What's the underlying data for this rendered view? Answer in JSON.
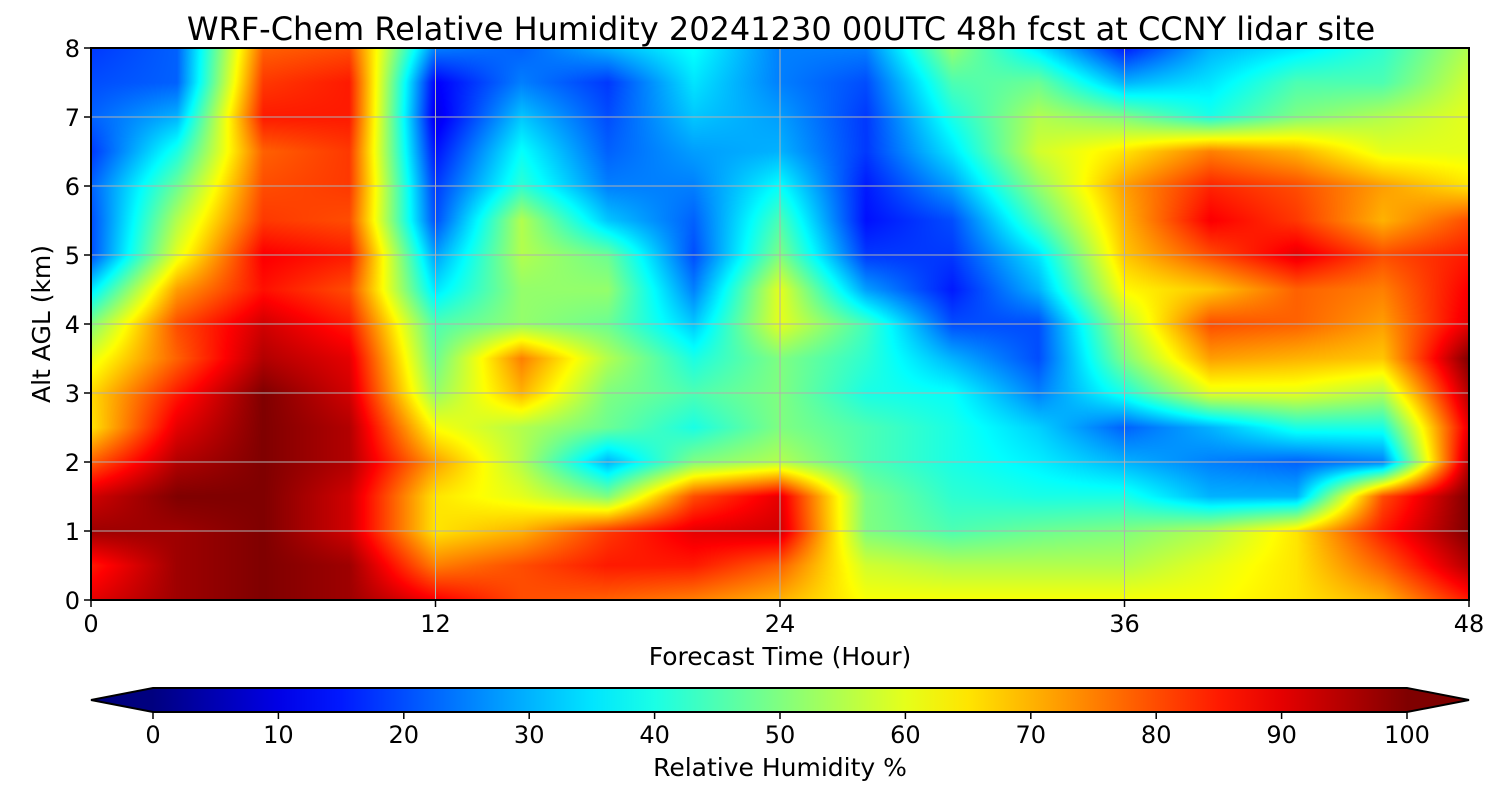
{
  "chart_data": {
    "type": "heatmap",
    "title": "WRF-Chem Relative Humidity 20241230 00UTC 48h fcst at CCNY lidar site",
    "xlabel": "Forecast Time (Hour)",
    "ylabel": "Alt AGL (km)",
    "xlim": [
      0,
      48
    ],
    "ylim": [
      0,
      8
    ],
    "xticks": [
      "0",
      "12",
      "24",
      "36",
      "48"
    ],
    "yticks": [
      "0",
      "1",
      "2",
      "3",
      "4",
      "5",
      "6",
      "7",
      "8"
    ],
    "grid": true,
    "colorbar": {
      "label": "Relative Humidity %",
      "range": [
        0,
        100
      ],
      "ticks": [
        "0",
        "10",
        "20",
        "30",
        "40",
        "50",
        "60",
        "70",
        "80",
        "90",
        "100"
      ],
      "colormap": "jet",
      "extend": "both"
    },
    "x": [
      0,
      3,
      6,
      9,
      12,
      15,
      18,
      21,
      24,
      27,
      30,
      33,
      36,
      39,
      42,
      45,
      48
    ],
    "y": [
      0,
      0.5,
      1,
      1.5,
      2,
      2.5,
      3,
      3.5,
      4,
      4.5,
      5,
      5.5,
      6,
      6.5,
      7,
      7.5,
      8
    ],
    "z": [
      [
        90,
        97,
        100,
        97,
        88,
        80,
        78,
        75,
        70,
        62,
        62,
        62,
        62,
        62,
        65,
        70,
        85
      ],
      [
        85,
        97,
        100,
        97,
        75,
        80,
        85,
        85,
        78,
        58,
        55,
        55,
        55,
        60,
        65,
        78,
        95
      ],
      [
        97,
        97,
        100,
        92,
        65,
        70,
        82,
        90,
        92,
        50,
        45,
        48,
        50,
        55,
        65,
        85,
        100
      ],
      [
        92,
        100,
        100,
        92,
        65,
        60,
        50,
        80,
        90,
        50,
        42,
        40,
        40,
        30,
        30,
        80,
        100
      ],
      [
        78,
        95,
        100,
        95,
        72,
        55,
        30,
        50,
        55,
        45,
        40,
        36,
        30,
        25,
        22,
        25,
        95
      ],
      [
        65,
        90,
        100,
        95,
        62,
        55,
        48,
        40,
        50,
        45,
        40,
        33,
        22,
        30,
        40,
        40,
        90
      ],
      [
        66,
        85,
        100,
        92,
        52,
        70,
        50,
        45,
        50,
        40,
        38,
        25,
        40,
        60,
        60,
        55,
        95
      ],
      [
        60,
        78,
        95,
        90,
        48,
        75,
        55,
        40,
        50,
        42,
        30,
        20,
        50,
        72,
        70,
        68,
        100
      ],
      [
        50,
        80,
        92,
        85,
        45,
        52,
        48,
        32,
        60,
        44,
        20,
        20,
        55,
        80,
        78,
        72,
        90
      ],
      [
        35,
        72,
        86,
        80,
        35,
        52,
        52,
        25,
        60,
        28,
        15,
        30,
        63,
        68,
        78,
        75,
        88
      ],
      [
        20,
        60,
        88,
        85,
        28,
        55,
        48,
        20,
        50,
        18,
        18,
        35,
        68,
        80,
        90,
        80,
        85
      ],
      [
        20,
        55,
        82,
        80,
        20,
        55,
        32,
        22,
        45,
        14,
        20,
        45,
        70,
        88,
        82,
        70,
        80
      ],
      [
        22,
        48,
        80,
        82,
        18,
        42,
        25,
        25,
        38,
        15,
        28,
        52,
        72,
        84,
        80,
        72,
        65
      ],
      [
        18,
        40,
        78,
        82,
        14,
        38,
        22,
        28,
        30,
        18,
        35,
        58,
        65,
        75,
        70,
        60,
        60
      ],
      [
        22,
        30,
        85,
        85,
        10,
        32,
        20,
        32,
        28,
        18,
        40,
        55,
        50,
        40,
        50,
        55,
        60
      ],
      [
        20,
        22,
        82,
        85,
        12,
        25,
        18,
        35,
        25,
        20,
        45,
        48,
        30,
        35,
        45,
        45,
        58
      ],
      [
        18,
        22,
        78,
        80,
        25,
        22,
        30,
        38,
        25,
        25,
        52,
        35,
        15,
        30,
        35,
        42,
        55
      ]
    ]
  }
}
